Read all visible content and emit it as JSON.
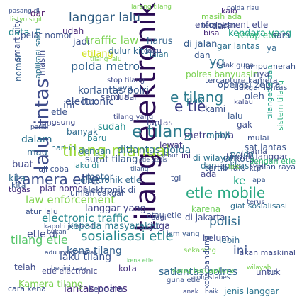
{
  "wordcloud": {
    "words": [
      {
        "text": "tilang elektronik",
        "color": "#2a0b54"
      },
      {
        "text": "lalu lintas",
        "color": "#3e4c8a"
      },
      {
        "text": "kamera etle",
        "color": "#3b4f8c"
      },
      {
        "text": "tilang manual",
        "color": "#9bd93c"
      },
      {
        "text": "e tilang",
        "color": "#2e7b8e"
      },
      {
        "text": "etle mobile",
        "color": "#2aa882"
      },
      {
        "text": "sosialisasi etle",
        "color": "#26888d"
      },
      {
        "text": "e tle",
        "color": "#3b3e86"
      },
      {
        "text": "langgar lalu",
        "color": "#2b597f"
      },
      {
        "text": "polda metro",
        "color": "#2b5e8b"
      },
      {
        "text": "traffic law",
        "color": "#7ad151"
      },
      {
        "text": "ditlantas polda",
        "color": "#2f6f8e"
      },
      {
        "text": "law enforcement",
        "color": "#7fd34e"
      },
      {
        "text": "electronic traffic",
        "color": "#24868e"
      },
      {
        "text": "laku tilang",
        "color": "#36508b"
      },
      {
        "text": "tilang etle",
        "color": "#54c568"
      },
      {
        "text": "kena tilang",
        "color": "#2f5d8c"
      },
      {
        "text": "etle di",
        "color": "#3c4e8a"
      },
      {
        "text": "polisi",
        "color": "#2f6b8e"
      },
      {
        "text": "ini",
        "color": "#3a528b"
      },
      {
        "text": "lantas polres",
        "color": "#472d7b"
      },
      {
        "text": "kepada masyarakat",
        "color": "#2a788e"
      },
      {
        "text": "satlantas polres",
        "color": "#31668e"
      },
      {
        "text": "langgar yang",
        "color": "#404588"
      },
      {
        "text": "dan aplikasi",
        "color": "#2d708e"
      },
      {
        "text": "smart city",
        "color": "#3c4f8a"
      },
      {
        "text": "e tilang",
        "color": "#2e7b8e"
      },
      {
        "text": "korlantas polri",
        "color": "#38588c"
      },
      {
        "text": "metro jaya",
        "color": "#433e85"
      },
      {
        "text": "tertib lalu",
        "color": "#3b528b"
      },
      {
        "text": "ke",
        "color": "#22a785"
      },
      {
        "text": "elektronik etle",
        "color": "#31688e"
      },
      {
        "text": "enforcement etle",
        "color": "#404688"
      },
      {
        "text": "jadi",
        "color": "#3b518b"
      },
      {
        "text": "dari",
        "color": "#3f4788"
      },
      {
        "text": "etilang",
        "color": "#d0e11c"
      },
      {
        "text": "di jalan",
        "color": "#365c8d"
      },
      {
        "text": "jalan",
        "color": "#2c728e"
      },
      {
        "text": "yg",
        "color": "#2c718e"
      },
      {
        "text": "tercapture kamera",
        "color": "#3b518b"
      },
      {
        "text": "gar lantas",
        "color": "#2d708e"
      },
      {
        "text": "operasi zebra",
        "color": "#39558c"
      },
      {
        "text": "bisa",
        "color": "#482979"
      },
      {
        "text": "kendara yang",
        "color": "#1fa088"
      },
      {
        "text": "terap etle",
        "color": "#35b779"
      },
      {
        "text": "sam",
        "color": "#3b528b"
      },
      {
        "text": "udah",
        "color": "#482576"
      },
      {
        "text": "dulur kito",
        "color": "#31678e"
      },
      {
        "text": "harus",
        "color": "#33638d"
      },
      {
        "text": "itu",
        "color": "#3a548c"
      },
      {
        "text": "semua",
        "color": "#3e4a89"
      },
      {
        "text": "saya",
        "color": "#38598c"
      },
      {
        "text": "sudah",
        "color": "#228c8d"
      },
      {
        "text": "banyak",
        "color": "#2f6b8e"
      },
      {
        "text": "baru",
        "color": "#27808e"
      },
      {
        "text": "dengan",
        "color": "#2c728e"
      },
      {
        "text": "lewat",
        "color": "#443983"
      },
      {
        "text": "mobil",
        "color": "#2a768e"
      },
      {
        "text": "gak",
        "color": "#3d4d8a"
      },
      {
        "text": "di wilayah",
        "color": "#2c718e"
      },
      {
        "text": "di kota",
        "color": "#365d8d"
      },
      {
        "text": "tindak langgar",
        "color": "#3e4989"
      },
      {
        "text": "surat tilang",
        "color": "#38598c"
      },
      {
        "text": "laku di",
        "color": "#25838e"
      },
      {
        "text": "mau",
        "color": "#31678e"
      },
      {
        "text": "dalam",
        "color": "#2c738e"
      },
      {
        "text": "buat",
        "color": "#3f4788"
      },
      {
        "text": "uji coba",
        "color": "#3b528b"
      },
      {
        "text": "kita",
        "color": "#2f6c8e"
      },
      {
        "text": "tugas",
        "color": "#46307e"
      },
      {
        "text": "plat nomor",
        "color": "#463480"
      },
      {
        "text": "sistem tilang",
        "color": "#2ab07f"
      },
      {
        "text": "tilangetle dan",
        "color": "#1fa088"
      },
      {
        "text": "sat lantas",
        "color": "#3a538b"
      },
      {
        "text": "sama",
        "color": "#3d4e8a"
      },
      {
        "text": "tapi",
        "color": "#3e4a89"
      },
      {
        "text": "ada",
        "color": "#414487"
      },
      {
        "text": "atau etle",
        "color": "#3b518b"
      },
      {
        "text": "karena",
        "color": "#6ece58"
      },
      {
        "text": "juga",
        "color": "#433d84"
      },
      {
        "text": "belum",
        "color": "#3e4989"
      },
      {
        "text": "untuk",
        "color": "#3f4889"
      },
      {
        "text": "lebih",
        "color": "#31688e"
      },
      {
        "text": "kendara",
        "color": "#404588"
      },
      {
        "text": "jenis langgar",
        "color": "#2b758e"
      },
      {
        "text": "Kamera tilang",
        "color": "#7ad151"
      },
      {
        "text": "telah",
        "color": "#3e4a89"
      },
      {
        "text": "kita",
        "color": "#38588c"
      },
      {
        "text": "motor",
        "color": "#34618d"
      },
      {
        "text": "elektronik di",
        "color": "#3b528b"
      },
      {
        "text": "giat sosialisasi",
        "color": "#2e6e8e"
      },
      {
        "text": "di jakarta",
        "color": "#3d4e8a"
      },
      {
        "text": "polda",
        "color": "#2d708e"
      },
      {
        "text": "data",
        "color": "#23898e"
      },
      {
        "text": "dar",
        "color": "#471063"
      },
      {
        "text": "kalo",
        "color": "#472a7a"
      },
      {
        "text": "ya",
        "color": "#31678e"
      },
      {
        "text": "nya",
        "color": "#3e4c8a"
      },
      {
        "text": "pak",
        "color": "#2a788e"
      },
      {
        "text": "kami",
        "color": "#3b528b"
      },
      {
        "text": "laku",
        "color": "#3e4a89"
      },
      {
        "text": "hari ini",
        "color": "#2c718e"
      },
      {
        "text": "ini",
        "color": "#3a548c"
      },
      {
        "text": "etle",
        "color": "#3b528b"
      },
      {
        "text": "pelat nomor",
        "color": "#3b528b"
      },
      {
        "text": "nomor",
        "color": "#35608d"
      },
      {
        "text": "aplikasi sakti",
        "color": "#2c718e"
      },
      {
        "text": "masih",
        "color": "#3e4a89"
      },
      {
        "text": "electronic",
        "color": "#3b528b"
      },
      {
        "text": "etle electronic",
        "color": "#404688"
      },
      {
        "text": "kota",
        "color": "#46327e"
      },
      {
        "text": "yang tercapture",
        "color": "#5ec962"
      },
      {
        "text": "atur lalu",
        "color": "#3b528b"
      },
      {
        "text": "di bal",
        "color": "#3e4a89"
      },
      {
        "text": "dan",
        "color": "#38588c"
      },
      {
        "text": "lalu",
        "color": "#38588c"
      },
      {
        "text": "oleh",
        "color": "#3b528b"
      },
      {
        "text": "lantas",
        "color": "#404588"
      },
      {
        "text": "polres banyuasin",
        "color": "#7ad151"
      },
      {
        "text": "larang tilang",
        "color": "#7ad151"
      },
      {
        "text": "polda riau",
        "color": "#3b528b"
      },
      {
        "text": "pasang di",
        "color": "#3b528b"
      },
      {
        "text": "listyo sigit",
        "color": "#7ad151"
      },
      {
        "text": "ini",
        "color": "#46307e"
      },
      {
        "text": "dengan etle",
        "color": "#35b779"
      },
      {
        "text": "lampu merah",
        "color": "#3b528b"
      },
      {
        "text": "langsung",
        "color": "#3e4a89"
      },
      {
        "text": "tilang",
        "color": "#38588c"
      },
      {
        "text": "etle statis",
        "color": "#3b528b"
      },
      {
        "text": "akan maskinal",
        "color": "#3e4a89"
      },
      {
        "text": "adu masyarakat",
        "color": "#3b528b"
      },
      {
        "text": "jumlah dakgar",
        "color": "#3b528b"
      },
      {
        "text": "kapolri jenderal",
        "color": "#3b528b"
      },
      {
        "text": "begini cara",
        "color": "#3b528b"
      },
      {
        "text": "kena etle",
        "color": "#5ec962"
      },
      {
        "text": "cara kena",
        "color": "#3b528b"
      },
      {
        "text": "anak",
        "color": "#3e4a89"
      },
      {
        "text": "jam yang",
        "color": "#38588c"
      },
      {
        "text": "sekarang",
        "color": "#7ad151"
      },
      {
        "text": "masih ada",
        "color": "#7ad151"
      },
      {
        "text": "terapkan",
        "color": "#3b528b"
      },
      {
        "text": "tidak guna",
        "color": "#3b528b"
      },
      {
        "text": "dakgar lantas",
        "color": "#3b528b"
      },
      {
        "text": "tilang yang",
        "color": "#3e4a89"
      },
      {
        "text": "sebut",
        "color": "#3b528b"
      },
      {
        "text": "tilang lalu",
        "color": "#7ad151"
      },
      {
        "text": "stop tilang",
        "color": "#3e4a89"
      },
      {
        "text": "terus",
        "color": "#3b528b"
      },
      {
        "text": "bagi",
        "color": "#3e4a89"
      },
      {
        "text": "parkir",
        "color": "#3b528b"
      },
      {
        "text": "wilayah",
        "color": "#7ad151"
      },
      {
        "text": "bukan",
        "color": "#3b528b"
      },
      {
        "text": "guna etle",
        "color": "#3b528b"
      },
      {
        "text": "tgl",
        "color": "#3b528b"
      },
      {
        "text": "mulai",
        "color": "#3b528b"
      },
      {
        "text": "apa",
        "color": "#38588c"
      },
      {
        "text": "kalau",
        "color": "#3e4a89"
      },
      {
        "text": "ktp",
        "color": "#3b528b"
      },
      {
        "text": "aja",
        "color": "#3b528b"
      },
      {
        "text": "foto",
        "color": "#7ad151"
      },
      {
        "text": "baik",
        "color": "#3b528b"
      },
      {
        "text": "kota bandung",
        "color": "#3b528b"
      },
      {
        "text": "jalan raya",
        "color": "#3b528b"
      },
      {
        "text": "polrestabes",
        "color": "#3b528b"
      }
    ]
  }
}
